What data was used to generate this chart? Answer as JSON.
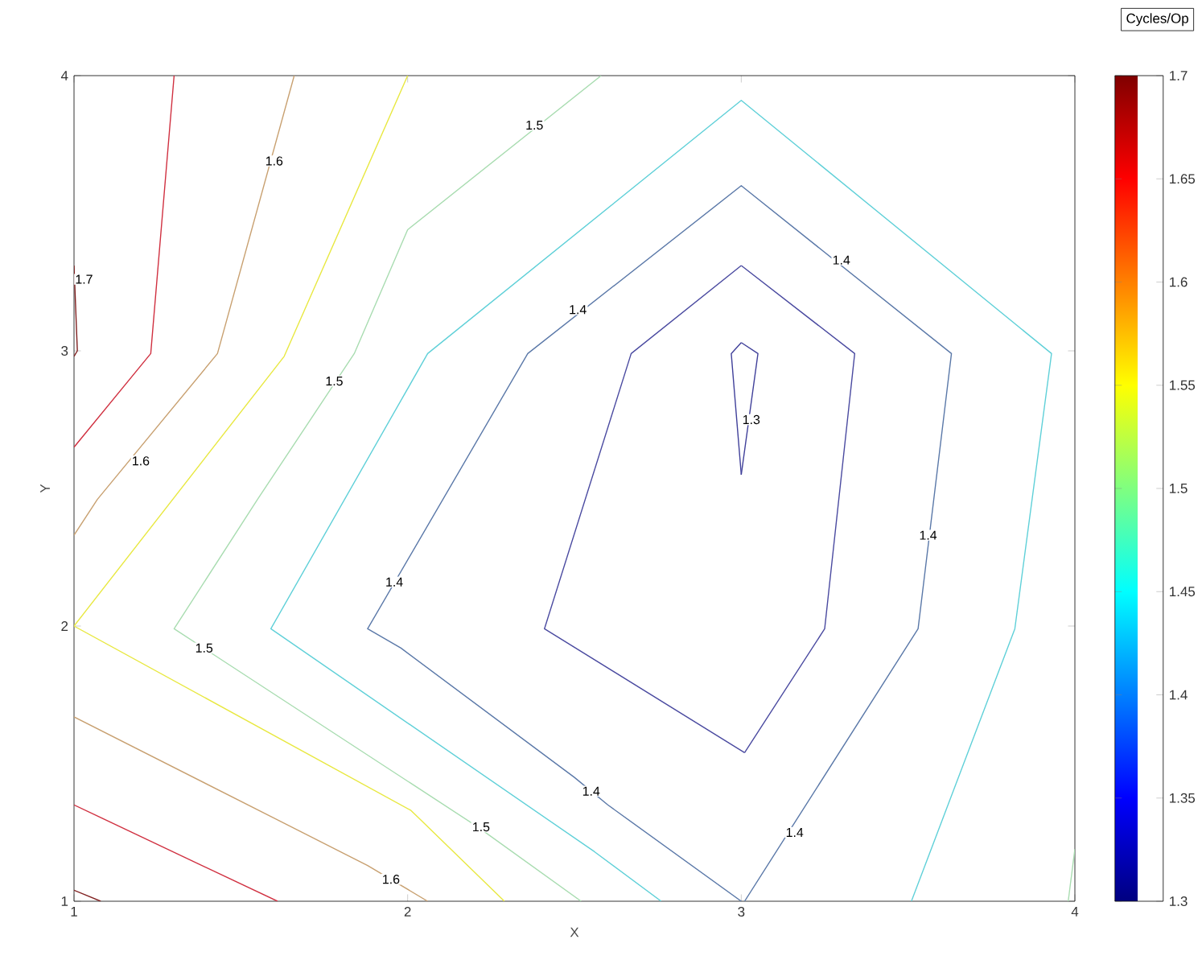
{
  "chart_data": {
    "type": "line",
    "xlabel": "X",
    "ylabel": "Y",
    "legend_title": "Cycles/Op",
    "xlim": [
      1,
      4
    ],
    "ylim": [
      1,
      4
    ],
    "xticks": [
      1,
      2,
      3,
      4
    ],
    "yticks": [
      1,
      2,
      3,
      4
    ],
    "clim": [
      1.3,
      1.7
    ],
    "cticks": [
      1.3,
      1.35,
      1.4,
      1.45,
      1.5,
      1.55,
      1.6,
      1.65,
      1.7
    ],
    "series": [
      {
        "color": "#40409a",
        "x": [
          3.0,
          2.97,
          3.0
        ],
        "values": [
          3.03,
          2.99,
          2.55
        ]
      },
      {
        "color": "#40409a",
        "x": [
          3.0,
          3.05,
          3.0
        ],
        "values": [
          3.03,
          2.99,
          2.55
        ]
      },
      {
        "color": "#4a4aa0",
        "x": [
          3.0,
          2.67,
          2.41,
          3.01
        ],
        "values": [
          3.31,
          2.99,
          1.99,
          1.54
        ]
      },
      {
        "color": "#4a4aa0",
        "x": [
          3.01,
          3.25,
          3.34,
          3.0
        ],
        "values": [
          1.54,
          1.99,
          2.99,
          3.31
        ]
      },
      {
        "color": "#5a78a8",
        "x": [
          3.0,
          2.6,
          2.5,
          1.98,
          1.88,
          2.36,
          3.0,
          3.63,
          3.53,
          3.01
        ],
        "values": [
          1.0,
          1.35,
          1.45,
          1.92,
          1.99,
          2.99,
          3.6,
          2.99,
          1.99,
          1.0
        ]
      },
      {
        "color": "#5fd0d8",
        "x": [
          2.76,
          2.56,
          1.59,
          2.06,
          3.0,
          3.93,
          3.82,
          3.51
        ],
        "values": [
          1.0,
          1.18,
          1.99,
          2.99,
          3.91,
          2.99,
          1.99,
          1.0
        ]
      },
      {
        "color": "#a8dcb0",
        "x": [
          2.58,
          2.0,
          1.84,
          1.55,
          1.3,
          2.21,
          2.52
        ],
        "values": [
          4.0,
          3.44,
          2.99,
          2.46,
          1.99,
          1.27,
          1.0
        ]
      },
      {
        "color": "#a8dcb0",
        "x": [
          4.0,
          3.98
        ],
        "values": [
          1.19,
          1.0
        ]
      },
      {
        "color": "#e8e840",
        "x": [
          2.0,
          1.63,
          1.0,
          2.01,
          2.29
        ],
        "values": [
          4.0,
          2.98,
          2.0,
          1.33,
          1.0
        ]
      },
      {
        "color": "#c8a070",
        "x": [
          1.66,
          1.43,
          1.07,
          1.0
        ],
        "values": [
          4.0,
          2.99,
          2.46,
          2.33
        ]
      },
      {
        "color": "#c8a070",
        "x": [
          1.0,
          1.88,
          2.06
        ],
        "values": [
          1.67,
          1.13,
          1.0
        ]
      },
      {
        "color": "#d03040",
        "x": [
          1.3,
          1.23,
          1.0
        ],
        "values": [
          4.0,
          2.99,
          2.65
        ]
      },
      {
        "color": "#d03040",
        "x": [
          1.0,
          1.61
        ],
        "values": [
          1.35,
          1.0
        ]
      },
      {
        "color": "#802020",
        "x": [
          1.0,
          1.01,
          1.0
        ],
        "values": [
          3.31,
          3.0,
          2.98
        ]
      },
      {
        "color": "#802020",
        "x": [
          1.0,
          1.08
        ],
        "values": [
          1.04,
          1.0
        ]
      }
    ],
    "annotations": [
      {
        "text": "1.7",
        "x": 1.03,
        "y": 3.26
      },
      {
        "text": "1.6",
        "x": 1.6,
        "y": 3.69
      },
      {
        "text": "1.5",
        "x": 2.38,
        "y": 3.82
      },
      {
        "text": "1.4",
        "x": 2.51,
        "y": 3.15
      },
      {
        "text": "1.6",
        "x": 1.2,
        "y": 2.6
      },
      {
        "text": "1.5",
        "x": 1.78,
        "y": 2.89
      },
      {
        "text": "1.4",
        "x": 3.3,
        "y": 3.33
      },
      {
        "text": "1.3",
        "x": 3.03,
        "y": 2.75
      },
      {
        "text": "1.4",
        "x": 1.96,
        "y": 2.16
      },
      {
        "text": "1.5",
        "x": 1.39,
        "y": 1.92
      },
      {
        "text": "1.4",
        "x": 3.56,
        "y": 2.33
      },
      {
        "text": "1.4",
        "x": 2.55,
        "y": 1.4
      },
      {
        "text": "1.5",
        "x": 2.22,
        "y": 1.27
      },
      {
        "text": "1.4",
        "x": 3.16,
        "y": 1.25
      },
      {
        "text": "1.6",
        "x": 1.95,
        "y": 1.08
      }
    ]
  }
}
